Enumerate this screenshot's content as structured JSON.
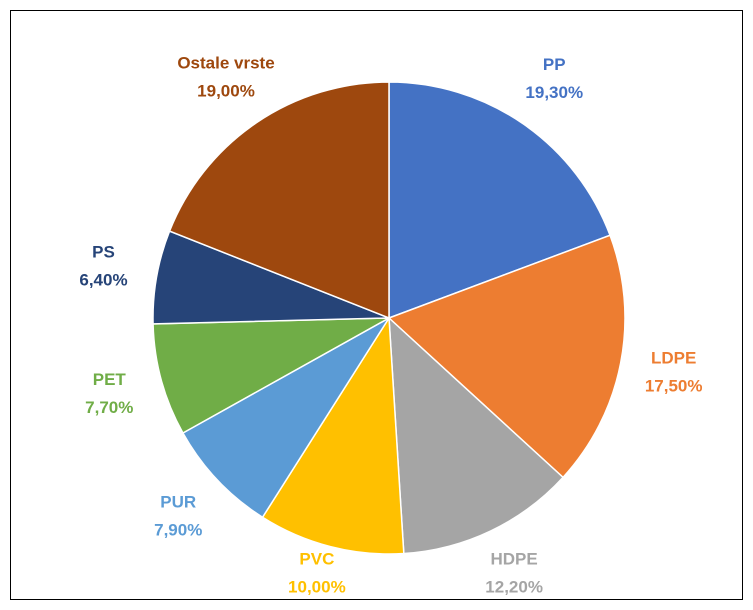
{
  "chart_data": {
    "type": "pie",
    "categories": [
      "PP",
      "LDPE",
      "HDPE",
      "PVC",
      "PUR",
      "PET",
      "PS",
      "Ostale vrste"
    ],
    "values": [
      19.3,
      17.5,
      12.2,
      10.0,
      7.9,
      7.7,
      6.4,
      19.0
    ],
    "value_labels": [
      "19,30%",
      "17,50%",
      "12,20%",
      "10,00%",
      "7,90%",
      "7,70%",
      "6,40%",
      "19,00%"
    ],
    "colors": [
      "#4472c4",
      "#ed7d31",
      "#a5a5a5",
      "#ffc000",
      "#5b9bd5",
      "#70ad47",
      "#264478",
      "#9e480e"
    ]
  }
}
